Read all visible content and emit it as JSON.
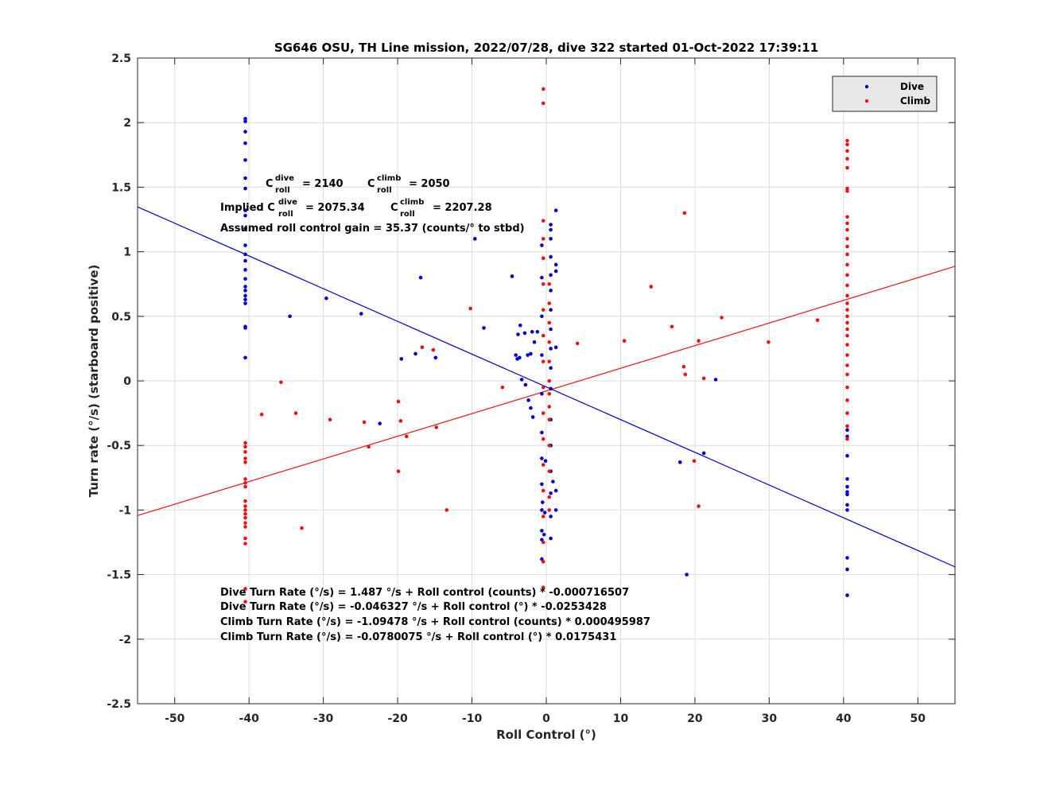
{
  "chart_data": {
    "type": "scatter",
    "title": "SG646 OSU, TH Line mission, 2022/07/28, dive 322 started 01-Oct-2022 17:39:11",
    "xlabel": "Roll Control (°)",
    "ylabel": "Turn rate (°/s) (starboard positive)",
    "xlim": [
      -55,
      55
    ],
    "ylim": [
      -2.5,
      2.5
    ],
    "xticks": [
      -50,
      -40,
      -30,
      -20,
      -10,
      0,
      10,
      20,
      30,
      40,
      50
    ],
    "yticks": [
      -2.5,
      -2,
      -1.5,
      -1,
      -0.5,
      0,
      0.5,
      1,
      1.5,
      2,
      2.5
    ],
    "grid": true,
    "legend_position": "top-right",
    "series": [
      {
        "name": "Dive",
        "color": "#0000d0",
        "points": [
          [
            -40.5,
            2.03
          ],
          [
            -40.5,
            2.01
          ],
          [
            -40.5,
            1.93
          ],
          [
            -40.5,
            1.84
          ],
          [
            -40.5,
            1.71
          ],
          [
            -40.5,
            1.57
          ],
          [
            -40.5,
            1.49
          ],
          [
            -40.5,
            1.32
          ],
          [
            -40.5,
            1.28
          ],
          [
            -40.5,
            1.18
          ],
          [
            -40.5,
            1.05
          ],
          [
            -40.5,
            0.98
          ],
          [
            -40.5,
            0.93
          ],
          [
            -40.5,
            0.86
          ],
          [
            -40.5,
            0.79
          ],
          [
            -40.5,
            0.73
          ],
          [
            -40.5,
            0.7
          ],
          [
            -40.5,
            0.66
          ],
          [
            -40.5,
            0.63
          ],
          [
            -40.5,
            0.6
          ],
          [
            -40.5,
            0.42
          ],
          [
            -40.5,
            0.41
          ],
          [
            -40.5,
            0.18
          ],
          [
            -29.6,
            0.64
          ],
          [
            -34.5,
            0.5
          ],
          [
            -24.9,
            0.52
          ],
          [
            -16.9,
            0.8
          ],
          [
            -19.5,
            0.17
          ],
          [
            -17.6,
            0.21
          ],
          [
            -14.9,
            0.18
          ],
          [
            -9.6,
            1.1
          ],
          [
            -8.4,
            0.41
          ],
          [
            -22.4,
            -0.33
          ],
          [
            -4.6,
            0.81
          ],
          [
            -3.5,
            0.43
          ],
          [
            -3.8,
            0.36
          ],
          [
            -2.9,
            0.37
          ],
          [
            -2.5,
            0.2
          ],
          [
            -2.1,
            0.21
          ],
          [
            -4.1,
            0.2
          ],
          [
            -3.9,
            0.17
          ],
          [
            -3.6,
            0.18
          ],
          [
            -3.3,
            0.01
          ],
          [
            -2.8,
            -0.03
          ],
          [
            -2.4,
            -0.15
          ],
          [
            -2.1,
            -0.21
          ],
          [
            -1.8,
            -0.28
          ],
          [
            -1.6,
            0.3
          ],
          [
            -1.2,
            0.38
          ],
          [
            -1.9,
            0.38
          ],
          [
            -0.6,
            1.05
          ],
          [
            -0.6,
            0.8
          ],
          [
            -0.6,
            0.5
          ],
          [
            -0.6,
            0.2
          ],
          [
            -0.6,
            -0.1
          ],
          [
            -0.6,
            -0.4
          ],
          [
            -0.6,
            -0.6
          ],
          [
            -0.6,
            -0.8
          ],
          [
            -0.6,
            -1.0
          ],
          [
            -0.6,
            -1.16
          ],
          [
            -0.6,
            -1.23
          ],
          [
            -0.6,
            -1.38
          ],
          [
            0.6,
            1.21
          ],
          [
            0.6,
            1.17
          ],
          [
            0.6,
            1.1
          ],
          [
            0.6,
            0.96
          ],
          [
            0.6,
            0.82
          ],
          [
            0.6,
            0.7
          ],
          [
            0.6,
            0.55
          ],
          [
            0.6,
            0.4
          ],
          [
            0.6,
            0.25
          ],
          [
            0.6,
            0.1
          ],
          [
            0.6,
            -0.06
          ],
          [
            0.6,
            -0.3
          ],
          [
            0.6,
            -0.5
          ],
          [
            0.6,
            -0.7
          ],
          [
            0.6,
            -0.87
          ],
          [
            0.6,
            -1.05
          ],
          [
            0.6,
            -1.22
          ],
          [
            1.3,
            1.32
          ],
          [
            1.3,
            0.9
          ],
          [
            1.3,
            0.85
          ],
          [
            1.3,
            0.26
          ],
          [
            1.3,
            -0.85
          ],
          [
            1.3,
            -1.0
          ],
          [
            0.9,
            -0.78
          ],
          [
            -0.1,
            -0.62
          ],
          [
            -0.3,
            -1.19
          ],
          [
            -0.2,
            -1.02
          ],
          [
            -0.5,
            -0.94
          ],
          [
            18.0,
            -0.63
          ],
          [
            21.2,
            -0.56
          ],
          [
            18.9,
            -1.5
          ],
          [
            22.8,
            0.01
          ],
          [
            40.5,
            -0.38
          ],
          [
            40.5,
            -0.43
          ],
          [
            40.5,
            -0.58
          ],
          [
            40.5,
            -0.76
          ],
          [
            40.5,
            -0.82
          ],
          [
            40.5,
            -0.86
          ],
          [
            40.5,
            -0.88
          ],
          [
            40.5,
            -0.96
          ],
          [
            40.5,
            -1.0
          ],
          [
            40.5,
            -1.37
          ],
          [
            40.5,
            -1.46
          ],
          [
            40.5,
            -1.66
          ]
        ],
        "fit": {
          "intercept": -0.046327,
          "slope": -0.0253428
        }
      },
      {
        "name": "Climb",
        "color": "#ee1111",
        "points": [
          [
            -40.5,
            -0.48
          ],
          [
            -40.5,
            -0.51
          ],
          [
            -40.5,
            -0.55
          ],
          [
            -40.5,
            -0.6
          ],
          [
            -40.5,
            -0.63
          ],
          [
            -40.5,
            -0.76
          ],
          [
            -40.5,
            -0.79
          ],
          [
            -40.5,
            -0.82
          ],
          [
            -40.5,
            -0.93
          ],
          [
            -40.5,
            -0.97
          ],
          [
            -40.5,
            -1.0
          ],
          [
            -40.5,
            -1.03
          ],
          [
            -40.5,
            -1.06
          ],
          [
            -40.5,
            -1.1
          ],
          [
            -40.5,
            -1.13
          ],
          [
            -40.5,
            -1.22
          ],
          [
            -40.5,
            -1.26
          ],
          [
            -40.5,
            -1.61
          ],
          [
            -40.5,
            -1.71
          ],
          [
            -38.3,
            -0.26
          ],
          [
            -35.7,
            -0.01
          ],
          [
            -33.7,
            -0.25
          ],
          [
            -29.1,
            -0.3
          ],
          [
            -24.5,
            -0.32
          ],
          [
            -23.9,
            -0.51
          ],
          [
            -19.9,
            -0.16
          ],
          [
            -19.6,
            -0.31
          ],
          [
            -18.8,
            -0.43
          ],
          [
            -16.7,
            0.26
          ],
          [
            -15.2,
            0.24
          ],
          [
            -14.8,
            -0.36
          ],
          [
            -19.9,
            -0.7
          ],
          [
            -13.4,
            -1.0
          ],
          [
            -32.9,
            -1.14
          ],
          [
            -10.2,
            0.56
          ],
          [
            -5.9,
            -0.05
          ],
          [
            -0.4,
            2.26
          ],
          [
            -0.4,
            2.15
          ],
          [
            -0.4,
            1.24
          ],
          [
            -0.4,
            1.1
          ],
          [
            -0.4,
            0.95
          ],
          [
            -0.4,
            0.75
          ],
          [
            -0.4,
            0.55
          ],
          [
            -0.4,
            0.35
          ],
          [
            -0.4,
            0.15
          ],
          [
            -0.4,
            -0.05
          ],
          [
            -0.4,
            -0.25
          ],
          [
            -0.4,
            -0.45
          ],
          [
            -0.4,
            -0.65
          ],
          [
            -0.4,
            -0.85
          ],
          [
            -0.4,
            -1.05
          ],
          [
            -0.4,
            -1.25
          ],
          [
            -0.4,
            -1.4
          ],
          [
            -0.4,
            -1.6
          ],
          [
            0.4,
            0.75
          ],
          [
            0.4,
            0.6
          ],
          [
            0.4,
            0.45
          ],
          [
            0.4,
            0.3
          ],
          [
            0.4,
            0.15
          ],
          [
            0.4,
            0.0
          ],
          [
            0.4,
            -0.1
          ],
          [
            0.4,
            -0.2
          ],
          [
            0.4,
            -0.3
          ],
          [
            0.4,
            -0.5
          ],
          [
            0.4,
            -0.7
          ],
          [
            0.4,
            -0.9
          ],
          [
            0.4,
            -1.0
          ],
          [
            4.2,
            0.29
          ],
          [
            10.5,
            0.31
          ],
          [
            14.1,
            0.73
          ],
          [
            16.9,
            0.42
          ],
          [
            18.6,
            1.3
          ],
          [
            18.5,
            0.11
          ],
          [
            18.7,
            0.05
          ],
          [
            20.5,
            0.31
          ],
          [
            21.2,
            0.02
          ],
          [
            19.9,
            -0.62
          ],
          [
            20.5,
            -0.97
          ],
          [
            23.6,
            0.49
          ],
          [
            29.9,
            0.3
          ],
          [
            36.5,
            0.47
          ],
          [
            40.5,
            1.86
          ],
          [
            40.5,
            1.83
          ],
          [
            40.5,
            1.78
          ],
          [
            40.5,
            1.72
          ],
          [
            40.5,
            1.65
          ],
          [
            40.5,
            1.49
          ],
          [
            40.5,
            1.47
          ],
          [
            40.5,
            1.27
          ],
          [
            40.5,
            1.22
          ],
          [
            40.5,
            1.17
          ],
          [
            40.5,
            1.1
          ],
          [
            40.5,
            1.04
          ],
          [
            40.5,
            0.98
          ],
          [
            40.5,
            0.9
          ],
          [
            40.5,
            0.82
          ],
          [
            40.5,
            0.74
          ],
          [
            40.5,
            0.66
          ],
          [
            40.5,
            0.6
          ],
          [
            40.5,
            0.55
          ],
          [
            40.5,
            0.5
          ],
          [
            40.5,
            0.45
          ],
          [
            40.5,
            0.4
          ],
          [
            40.5,
            0.35
          ],
          [
            40.5,
            0.28
          ],
          [
            40.5,
            0.2
          ],
          [
            40.5,
            0.12
          ],
          [
            40.5,
            0.05
          ],
          [
            40.5,
            -0.05
          ],
          [
            40.5,
            -0.15
          ],
          [
            40.5,
            -0.25
          ],
          [
            40.5,
            -0.35
          ],
          [
            40.5,
            -0.45
          ]
        ],
        "fit": {
          "intercept": -0.0780075,
          "slope": 0.0175431
        }
      }
    ],
    "annotations": {
      "cline1": {
        "c_dive_label": "C",
        "c_dive_sup": "dive",
        "c_dive_sub": "roll",
        "c_dive_val": "= 2140",
        "c_climb_label": "C",
        "c_climb_sup": "climb",
        "c_climb_sub": "roll",
        "c_climb_val": "= 2050"
      },
      "cline2": {
        "prefix": "Implied C",
        "dive_sup": "dive",
        "dive_sub": "roll",
        "dive_val": "= 2075.34",
        "climb_label": "C",
        "climb_sup": "climb",
        "climb_sub": "roll",
        "climb_val": "= 2207.28"
      },
      "gain": "Assumed roll control gain = 35.37 (counts/° to stbd)",
      "eq1": "Dive Turn Rate (°/s) = 1.487 °/s + Roll control (counts) * -0.000716507",
      "eq2": "Dive Turn Rate (°/s) = -0.046327 °/s + Roll control (°) * -0.0253428",
      "eq3": "Climb Turn Rate (°/s) = -1.09478 °/s + Roll control (counts) * 0.000495987",
      "eq4": "Climb Turn Rate (°/s) = -0.0780075 °/s + Roll control (°) * 0.0175431"
    }
  }
}
